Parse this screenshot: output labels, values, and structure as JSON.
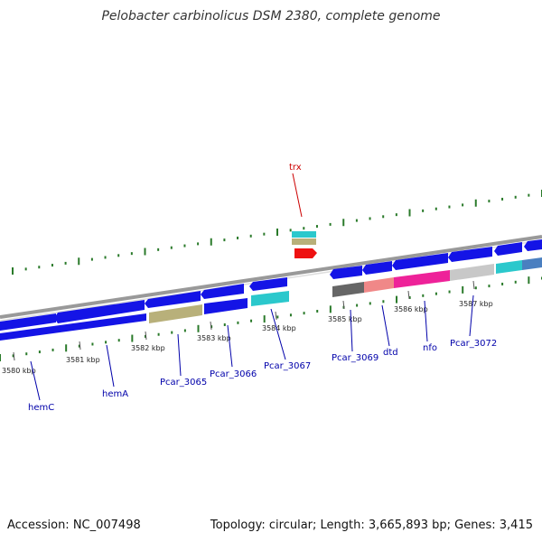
{
  "title": "Pelobacter carbinolicus DSM 2380, complete genome",
  "footer": {
    "accession": "Accession: NC_007498",
    "summary": "Topology: circular; Length: 3,665,893 bp; Genes: 3,415"
  },
  "axis_labels": [
    {
      "id": "kbp-3580",
      "text": "3580 kbp"
    },
    {
      "id": "kbp-3581",
      "text": "3581 kbp"
    },
    {
      "id": "kbp-3582",
      "text": "3582 kbp"
    },
    {
      "id": "kbp-3583",
      "text": "3583 kbp"
    },
    {
      "id": "kbp-3584",
      "text": "3584 kbp"
    },
    {
      "id": "kbp-3585",
      "text": "3585 kbp"
    },
    {
      "id": "kbp-3586",
      "text": "3586 kbp"
    },
    {
      "id": "kbp-3587",
      "text": "3587 kbp"
    }
  ],
  "gene_labels": [
    {
      "id": "gene-hemC",
      "text": "hemC"
    },
    {
      "id": "gene-hemA",
      "text": "hemA"
    },
    {
      "id": "gene-Pcar_3065",
      "text": "Pcar_3065"
    },
    {
      "id": "gene-Pcar_3066",
      "text": "Pcar_3066"
    },
    {
      "id": "gene-Pcar_3067",
      "text": "Pcar_3067"
    },
    {
      "id": "gene-Pcar_3069",
      "text": "Pcar_3069"
    },
    {
      "id": "gene-dtd",
      "text": "dtd"
    },
    {
      "id": "gene-nfo",
      "text": "nfo"
    },
    {
      "id": "gene-Pcar_3072",
      "text": "Pcar_3072"
    },
    {
      "id": "gene-trx",
      "text": "trx"
    }
  ],
  "colors": {
    "blue": "#1414e6",
    "olive": "#b8b07a",
    "cyan": "#2bc8cc",
    "red": "#ee1111",
    "gray": "#666666",
    "salmon": "#f08888",
    "pink": "#ee2299",
    "lightgray": "#c8c8c8",
    "steelblue": "#4a7fc0",
    "backbone": "#888888",
    "tick": "#2a7a2a",
    "label_line": "#0000aa",
    "trx_line": "#cc0000"
  }
}
